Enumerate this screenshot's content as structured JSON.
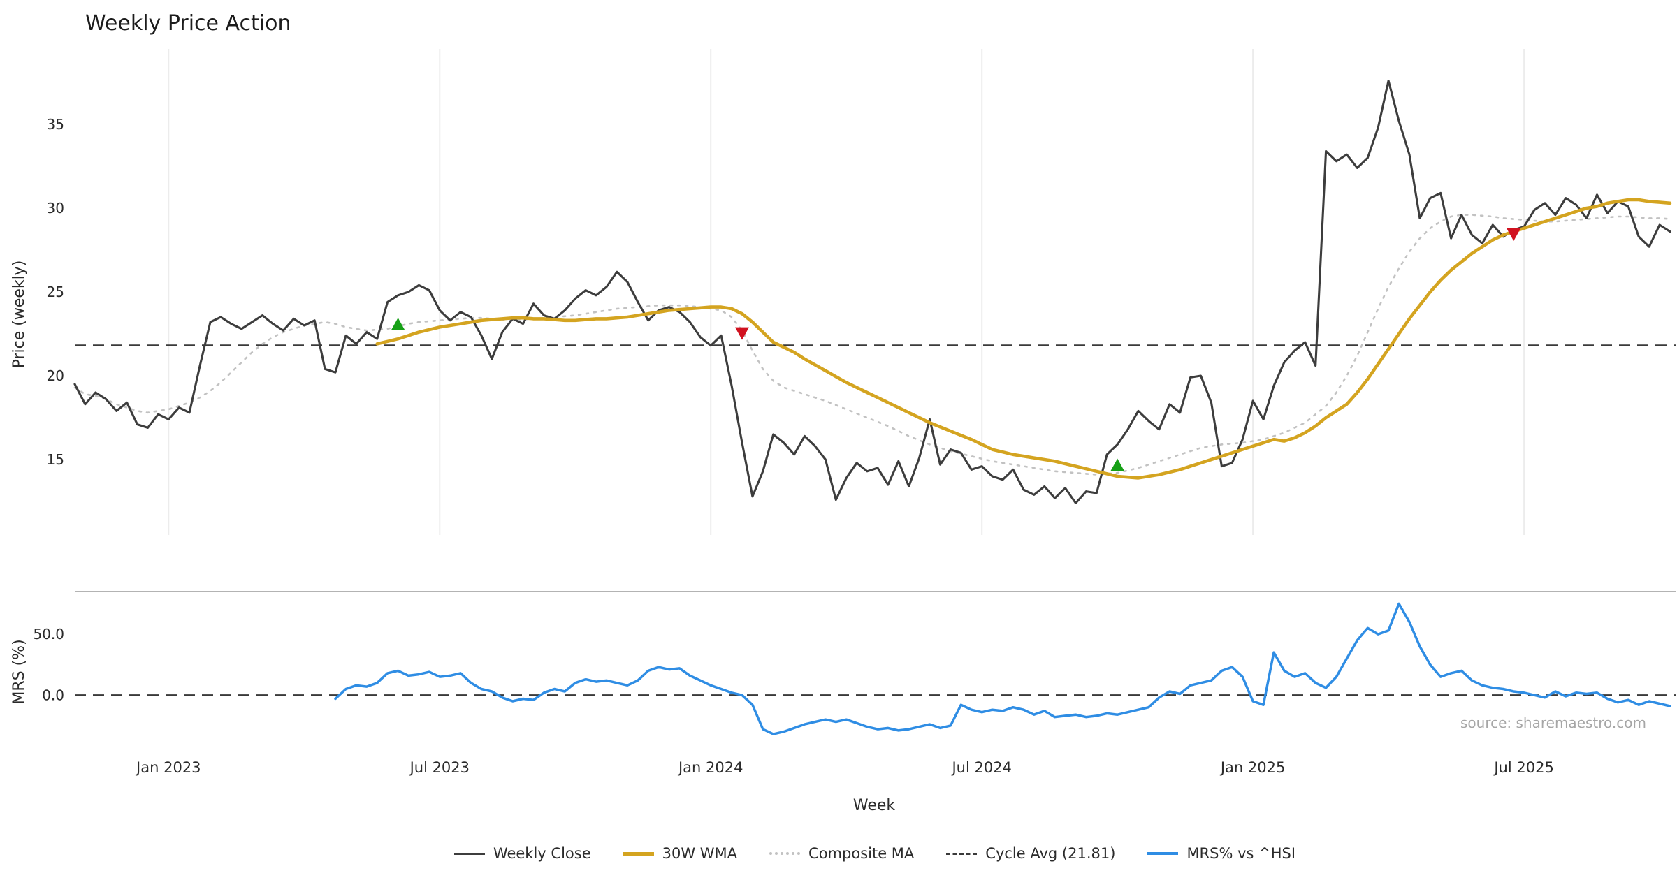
{
  "title": "Weekly Price Action",
  "source": "source: sharemaestro.com",
  "axes": {
    "price_label": "Price (weekly)",
    "mrs_label": "MRS (%)",
    "x_label": "Week"
  },
  "colors": {
    "grid": "#ececec",
    "cycle": "#3a3a3a",
    "buy": "#16a016",
    "sell": "#d11220",
    "close": "#3d3d3d",
    "wma": "#d4a420",
    "composite": "#c2c2c2",
    "mrs": "#2f8de4"
  },
  "legend": [
    {
      "id": "weekly-close",
      "label": "Weekly Close",
      "color": "#3d3d3d",
      "pattern": "solid",
      "weight": 3
    },
    {
      "id": "wma-30w",
      "label": "30W WMA",
      "color": "#d4a420",
      "pattern": "solid",
      "weight": 5
    },
    {
      "id": "composite-ma",
      "label": "Composite MA",
      "color": "#c2c2c2",
      "pattern": "dotted",
      "weight": 4
    },
    {
      "id": "cycle-avg",
      "label": "Cycle Avg (21.81)",
      "color": "#3a3a3a",
      "pattern": "dashed",
      "weight": 3
    },
    {
      "id": "mrs",
      "label": "MRS% vs ^HSI",
      "color": "#2f8de4",
      "pattern": "solid",
      "weight": 4
    }
  ],
  "chart_data": [
    {
      "type": "line",
      "title": "Weekly Price Action",
      "xlabel": "Week",
      "ylabel": "Price (weekly)",
      "ylim": [
        10.5,
        39.5
      ],
      "grid": "vertical-only",
      "cycle_avg": 21.81,
      "n_weeks": 154,
      "x_tick_labels": [
        "Jan 2023",
        "Jul 2023",
        "Jan 2024",
        "Jul 2024",
        "Jan 2025",
        "Jul 2025"
      ],
      "x_tick_indices": [
        9,
        35,
        61,
        87,
        113,
        139
      ],
      "yticks": [
        {
          "value": 35,
          "label": "35"
        },
        {
          "value": 30,
          "label": "30"
        },
        {
          "value": 25,
          "label": "25"
        },
        {
          "value": 20,
          "label": "20"
        },
        {
          "value": 15,
          "label": "15"
        }
      ],
      "series": [
        {
          "id": "weekly-close",
          "name": "Weekly Close",
          "color": "#3d3d3d",
          "width": 3.1,
          "z": 2,
          "start_index": 0,
          "values": [
            19.5,
            18.3,
            19.0,
            18.6,
            17.9,
            18.4,
            17.1,
            16.9,
            17.7,
            17.4,
            18.1,
            17.8,
            20.6,
            23.2,
            23.5,
            23.1,
            22.8,
            23.2,
            23.6,
            23.1,
            22.7,
            23.4,
            23.0,
            23.3,
            20.4,
            20.2,
            22.4,
            21.9,
            22.6,
            22.2,
            24.4,
            24.8,
            25.0,
            25.4,
            25.1,
            23.9,
            23.3,
            23.8,
            23.5,
            22.4,
            21.0,
            22.6,
            23.4,
            23.1,
            24.3,
            23.6,
            23.4,
            23.9,
            24.6,
            25.1,
            24.8,
            25.3,
            26.2,
            25.6,
            24.4,
            23.3,
            23.9,
            24.1,
            23.8,
            23.2,
            22.3,
            21.8,
            22.4,
            19.4,
            16.0,
            12.8,
            14.3,
            16.5,
            16.0,
            15.3,
            16.4,
            15.8,
            15.0,
            12.6,
            13.9,
            14.8,
            14.3,
            14.5,
            13.5,
            14.9,
            13.4,
            15.1,
            17.4,
            14.7,
            15.6,
            15.4,
            14.4,
            14.6,
            14.0,
            13.8,
            14.4,
            13.2,
            12.9,
            13.4,
            12.7,
            13.3,
            12.4,
            13.1,
            13.0,
            15.3,
            15.9,
            16.8,
            17.9,
            17.3,
            16.8,
            18.3,
            17.8,
            19.9,
            20.0,
            18.4,
            14.6,
            14.8,
            16.2,
            18.5,
            17.4,
            19.4,
            20.8,
            21.5,
            22.0,
            20.6,
            33.4,
            32.8,
            33.2,
            32.4,
            33.0,
            34.8,
            37.6,
            35.2,
            33.2,
            29.4,
            30.6,
            30.9,
            28.2,
            29.6,
            28.4,
            27.9,
            29.0,
            28.3,
            28.7,
            28.9,
            29.9,
            30.3,
            29.6,
            30.6,
            30.2,
            29.4,
            30.8,
            29.7,
            30.4,
            30.1,
            28.3,
            27.7,
            29.0,
            28.6
          ]
        },
        {
          "id": "wma-30w",
          "name": "30W WMA",
          "color": "#d4a420",
          "width": 4.6,
          "z": 3,
          "start_index": 29,
          "values": [
            21.9,
            22.05,
            22.2,
            22.4,
            22.6,
            22.75,
            22.9,
            23.0,
            23.1,
            23.2,
            23.3,
            23.35,
            23.4,
            23.45,
            23.45,
            23.4,
            23.4,
            23.35,
            23.3,
            23.3,
            23.35,
            23.4,
            23.4,
            23.45,
            23.5,
            23.6,
            23.7,
            23.8,
            23.9,
            23.95,
            24.0,
            24.05,
            24.1,
            24.1,
            24.0,
            23.7,
            23.2,
            22.6,
            22.0,
            21.7,
            21.4,
            21.0,
            20.65,
            20.3,
            19.95,
            19.6,
            19.3,
            19.0,
            18.7,
            18.4,
            18.1,
            17.8,
            17.5,
            17.2,
            16.95,
            16.7,
            16.45,
            16.2,
            15.9,
            15.6,
            15.45,
            15.3,
            15.2,
            15.1,
            15.0,
            14.9,
            14.75,
            14.6,
            14.45,
            14.3,
            14.15,
            14.0,
            13.95,
            13.9,
            14.0,
            14.1,
            14.25,
            14.4,
            14.6,
            14.8,
            15.0,
            15.2,
            15.4,
            15.6,
            15.8,
            16.0,
            16.2,
            16.1,
            16.3,
            16.6,
            17.0,
            17.5,
            17.9,
            18.3,
            19.0,
            19.8,
            20.7,
            21.6,
            22.5,
            23.4,
            24.2,
            25.0,
            25.7,
            26.3,
            26.8,
            27.3,
            27.7,
            28.1,
            28.4,
            28.6,
            28.8,
            29.0,
            29.2,
            29.4,
            29.6,
            29.8,
            30.0,
            30.1,
            30.3,
            30.4,
            30.5,
            30.5,
            30.4,
            30.35,
            30.3
          ]
        },
        {
          "id": "composite-ma",
          "name": "Composite MA",
          "color": "#c2c2c2",
          "width": 2.6,
          "z": 1,
          "dash": "3 8",
          "start_index": 0,
          "values": [
            19.3,
            18.9,
            18.8,
            18.6,
            18.3,
            18.1,
            17.9,
            17.8,
            17.9,
            18.0,
            18.2,
            18.4,
            18.7,
            19.1,
            19.6,
            20.2,
            20.8,
            21.4,
            21.9,
            22.3,
            22.6,
            22.8,
            23.0,
            23.1,
            23.2,
            23.1,
            22.9,
            22.8,
            22.7,
            22.75,
            22.8,
            22.95,
            23.1,
            23.2,
            23.25,
            23.3,
            23.35,
            23.4,
            23.45,
            23.45,
            23.4,
            23.35,
            23.3,
            23.35,
            23.4,
            23.45,
            23.5,
            23.55,
            23.6,
            23.7,
            23.8,
            23.9,
            24.0,
            24.05,
            24.1,
            24.15,
            24.2,
            24.2,
            24.2,
            24.15,
            24.1,
            24.0,
            23.9,
            23.5,
            22.7,
            21.5,
            20.4,
            19.7,
            19.3,
            19.1,
            18.9,
            18.7,
            18.5,
            18.25,
            18.0,
            17.75,
            17.5,
            17.25,
            17.0,
            16.7,
            16.4,
            16.15,
            15.9,
            15.7,
            15.5,
            15.35,
            15.2,
            15.05,
            14.9,
            14.8,
            14.7,
            14.6,
            14.5,
            14.4,
            14.3,
            14.25,
            14.2,
            14.15,
            14.1,
            14.15,
            14.2,
            14.35,
            14.5,
            14.7,
            14.9,
            15.1,
            15.3,
            15.5,
            15.7,
            15.8,
            15.9,
            15.95,
            16.0,
            16.1,
            16.2,
            16.4,
            16.6,
            16.9,
            17.2,
            17.7,
            18.2,
            19.0,
            20.0,
            21.2,
            22.6,
            24.0,
            25.3,
            26.4,
            27.4,
            28.2,
            28.8,
            29.2,
            29.5,
            29.6,
            29.6,
            29.55,
            29.5,
            29.4,
            29.35,
            29.3,
            29.25,
            29.2,
            29.2,
            29.25,
            29.3,
            29.35,
            29.4,
            29.45,
            29.5,
            29.5,
            29.45,
            29.4,
            29.4,
            29.35
          ]
        }
      ],
      "signals": {
        "buy": [
          {
            "index": 31,
            "value": 23.0
          },
          {
            "index": 100,
            "value": 14.6
          }
        ],
        "sell": [
          {
            "index": 64,
            "value": 22.6
          },
          {
            "index": 138,
            "value": 28.5
          }
        ]
      }
    },
    {
      "type": "line",
      "ylabel": "MRS (%)",
      "ylim": [
        -48,
        85
      ],
      "zero_line": 0,
      "yticks": [
        {
          "value": 50,
          "label": "50.0"
        },
        {
          "value": 0,
          "label": "0.0"
        }
      ],
      "series": [
        {
          "id": "mrs",
          "name": "MRS% vs ^HSI",
          "color": "#2f8de4",
          "width": 3.5,
          "z": 1,
          "start_index": 25,
          "values": [
            -3,
            5,
            8,
            7,
            10,
            18,
            20,
            16,
            17,
            19,
            15,
            16,
            18,
            10,
            5,
            3,
            -2,
            -5,
            -3,
            -4,
            2,
            5,
            3,
            10,
            13,
            11,
            12,
            10,
            8,
            12,
            20,
            23,
            21,
            22,
            16,
            12,
            8,
            5,
            2,
            0,
            -8,
            -28,
            -32,
            -30,
            -27,
            -24,
            -22,
            -20,
            -22,
            -20,
            -23,
            -26,
            -28,
            -27,
            -29,
            -28,
            -26,
            -24,
            -27,
            -25,
            -8,
            -12,
            -14,
            -12,
            -13,
            -10,
            -12,
            -16,
            -13,
            -18,
            -17,
            -16,
            -18,
            -17,
            -15,
            -16,
            -14,
            -12,
            -10,
            -2,
            3,
            1,
            8,
            10,
            12,
            20,
            23,
            15,
            -5,
            -8,
            35,
            20,
            15,
            18,
            10,
            6,
            15,
            30,
            45,
            55,
            50,
            53,
            75,
            60,
            40,
            25,
            15,
            18,
            20,
            12,
            8,
            6,
            5,
            3,
            2,
            0,
            -2,
            3,
            -1,
            2,
            1,
            2,
            -3,
            -6,
            -4,
            -8,
            -5,
            -7,
            -9
          ]
        }
      ]
    }
  ]
}
